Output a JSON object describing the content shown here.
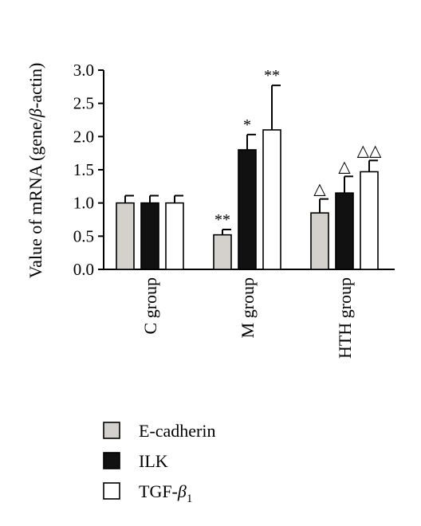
{
  "chart_data": {
    "type": "bar",
    "ylabel_parts": [
      "Value of mRNA (gene/",
      "β",
      "-actin)"
    ],
    "ylim": [
      0,
      3.0
    ],
    "yticks": [
      "0.0",
      "0.5",
      "1.0",
      "1.5",
      "2.0",
      "2.5",
      "3.0"
    ],
    "ytick_values": [
      0,
      0.5,
      1.0,
      1.5,
      2.0,
      2.5,
      3.0
    ],
    "categories": [
      "C group",
      "M group",
      "HTH group"
    ],
    "series": [
      {
        "name": "E-cadherin",
        "name_parts": [
          "E-cadherin",
          "",
          ""
        ],
        "color": "#d4d0cc",
        "values": [
          1.0,
          0.52,
          0.85
        ],
        "errors": [
          0.11,
          0.08,
          0.21
        ],
        "annotations": [
          "",
          "**",
          "△"
        ]
      },
      {
        "name": "ILK",
        "name_parts": [
          "ILK",
          "",
          ""
        ],
        "color": "#111111",
        "values": [
          1.0,
          1.8,
          1.15
        ],
        "errors": [
          0.11,
          0.23,
          0.25
        ],
        "annotations": [
          "",
          "*",
          "△"
        ]
      },
      {
        "name": "TGF-β1",
        "name_parts": [
          "TGF-",
          "β",
          "1"
        ],
        "color": "#ffffff",
        "values": [
          1.0,
          2.1,
          1.47
        ],
        "errors": [
          0.11,
          0.67,
          0.17
        ],
        "annotations": [
          "",
          "**",
          "△△"
        ]
      }
    ],
    "legend_position": "bottom-left",
    "grid": false
  }
}
